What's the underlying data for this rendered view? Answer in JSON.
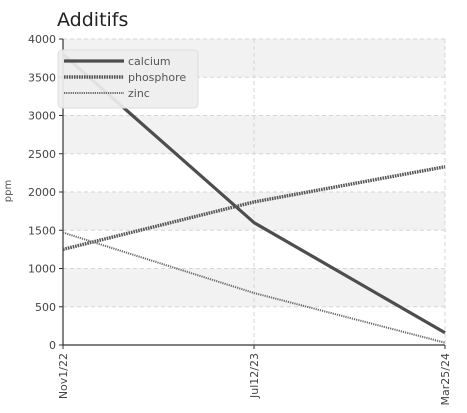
{
  "chart_data": {
    "type": "line",
    "title": "Additifs",
    "xlabel": "",
    "ylabel": "ppm",
    "x": [
      "Nov1/22",
      "Jul12/23",
      "Mar25/24"
    ],
    "ylim": [
      0,
      4000
    ],
    "yticks": [
      0,
      500,
      1000,
      1500,
      2000,
      2500,
      3000,
      3500,
      4000
    ],
    "grid": true,
    "legend_position": "top-left",
    "series": [
      {
        "name": "calcium",
        "values": [
          3800,
          1600,
          160
        ],
        "color": "#4d4d4d",
        "style": "solid"
      },
      {
        "name": "phosphore",
        "values": [
          1250,
          1870,
          2330
        ],
        "color": "#555555",
        "style": "dense-dotted"
      },
      {
        "name": "zinc",
        "values": [
          1470,
          680,
          30
        ],
        "color": "#6a6a6a",
        "style": "dotted"
      }
    ]
  }
}
